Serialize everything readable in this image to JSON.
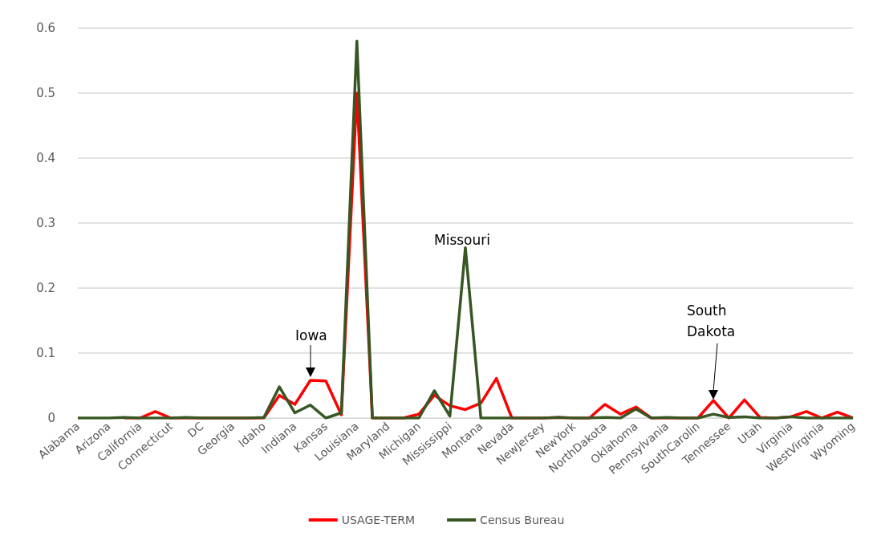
{
  "chart_data": {
    "type": "line",
    "categories": [
      "Alabama",
      null,
      "Arizona",
      null,
      "California",
      null,
      "Connecticut",
      null,
      "DC",
      null,
      "Georgia",
      null,
      "Idaho",
      null,
      "Indiana",
      null,
      "Kansas",
      null,
      "Louisiana",
      null,
      "Maryland",
      null,
      "Michigan",
      null,
      "Mississippi",
      null,
      "Montana",
      null,
      "Nevada",
      null,
      "NewJersey",
      null,
      "NewYork",
      null,
      "NorthDakota",
      null,
      "Oklahoma",
      null,
      "Pennsylvania",
      null,
      "SouthCarolin",
      null,
      "Tennessee",
      null,
      "Utah",
      null,
      "Virginia",
      null,
      "WestVirginia",
      null,
      "Wyoming"
    ],
    "series": [
      {
        "name": "USAGE-TERM",
        "color": "#ff0000",
        "values": [
          null,
          null,
          null,
          0,
          0,
          0.01,
          0,
          0,
          0,
          0,
          0,
          0,
          0,
          0.035,
          0.021,
          0.058,
          0.057,
          0.005,
          0.5,
          0,
          0,
          0,
          0.006,
          0.035,
          0.019,
          0.013,
          0.023,
          0.061,
          0,
          0,
          0,
          0.001,
          0,
          0,
          0.021,
          0.006,
          0.017,
          0,
          0,
          0,
          0,
          0.027,
          0,
          0.028,
          0.001,
          0,
          0.002,
          0.01,
          0,
          0.009,
          0
        ]
      },
      {
        "name": "Census Bureau",
        "color": "#375623",
        "values": [
          0,
          0,
          0,
          0.001,
          0,
          0,
          0,
          0.001,
          0,
          0,
          0,
          0,
          0.001,
          0.048,
          0.008,
          0.02,
          0,
          0.008,
          0.58,
          0,
          0,
          0,
          0,
          0.042,
          0.003,
          0.262,
          0,
          0,
          0,
          0,
          0,
          0.001,
          0,
          0,
          0.001,
          0,
          0.014,
          0,
          0.001,
          0,
          0,
          0.006,
          0.001,
          0.002,
          0,
          0,
          0.002,
          0,
          0,
          0,
          0
        ]
      }
    ],
    "ylim": [
      0,
      0.6
    ],
    "yticks": [
      0,
      0.1,
      0.2,
      0.3,
      0.4,
      0.5,
      0.6
    ],
    "grid": "y",
    "legend": "bottom",
    "marker": "none",
    "line_style": "solid",
    "annotations": [
      "Iowa",
      "Missouri",
      "South\nDakota"
    ]
  }
}
